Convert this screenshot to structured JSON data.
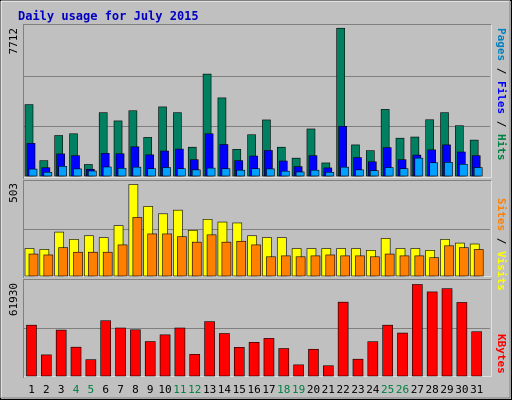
{
  "chart_data": [
    {
      "type": "bar",
      "title": "Daily usage for July 2015",
      "ymax_label": "7712",
      "right_label": [
        {
          "text": "Pages",
          "color": "#0080c0"
        },
        {
          "text": " / ",
          "color": "#000000"
        },
        {
          "text": "Files",
          "color": "#0000ff"
        },
        {
          "text": " / ",
          "color": "#000000"
        },
        {
          "text": "Hits",
          "color": "#008040"
        }
      ],
      "ylim": [
        0,
        7712
      ],
      "categories": [
        "1",
        "2",
        "3",
        "4",
        "5",
        "6",
        "7",
        "8",
        "9",
        "10",
        "11",
        "12",
        "13",
        "14",
        "15",
        "16",
        "17",
        "18",
        "19",
        "20",
        "21",
        "22",
        "23",
        "24",
        "25",
        "26",
        "27",
        "28",
        "29",
        "30",
        "31"
      ],
      "weekend_days": [
        "4",
        "5",
        "11",
        "12",
        "18",
        "19",
        "25",
        "26"
      ],
      "series": [
        {
          "name": "Hits",
          "color": "#008060",
          "values": [
            3720,
            800,
            2110,
            2200,
            600,
            3300,
            2870,
            3400,
            2010,
            3600,
            3300,
            1500,
            5310,
            4070,
            1390,
            2150,
            2920,
            1500,
            930,
            2450,
            680,
            7700,
            1620,
            1320,
            3470,
            1970,
            2030,
            2930,
            3300,
            2620,
            1870
          ]
        },
        {
          "name": "Files",
          "color": "#0000ff",
          "values": [
            1700,
            430,
            1150,
            1060,
            350,
            1180,
            1160,
            1520,
            1100,
            1300,
            1400,
            850,
            2200,
            1640,
            800,
            1040,
            1330,
            780,
            490,
            1060,
            420,
            2590,
            960,
            740,
            1480,
            850,
            1090,
            1360,
            1620,
            1250,
            1060
          ]
        },
        {
          "name": "Pages",
          "color": "#00a0ff",
          "values": [
            360,
            190,
            500,
            370,
            260,
            470,
            400,
            460,
            380,
            440,
            380,
            320,
            410,
            380,
            300,
            380,
            370,
            250,
            210,
            300,
            190,
            460,
            320,
            280,
            440,
            380,
            930,
            690,
            710,
            610,
            440
          ]
        }
      ]
    },
    {
      "type": "bar",
      "ymax_label": "503",
      "right_label": [
        {
          "text": "Sites",
          "color": "#ff8000"
        },
        {
          "text": " / ",
          "color": "#000000"
        },
        {
          "text": "Visits",
          "color": "#ffff00"
        }
      ],
      "ylim": [
        0,
        503
      ],
      "categories": [
        "1",
        "2",
        "3",
        "4",
        "5",
        "6",
        "7",
        "8",
        "9",
        "10",
        "11",
        "12",
        "13",
        "14",
        "15",
        "16",
        "17",
        "18",
        "19",
        "20",
        "21",
        "22",
        "23",
        "24",
        "25",
        "26",
        "27",
        "28",
        "29",
        "30",
        "31"
      ],
      "series": [
        {
          "name": "Visits",
          "color": "#ffff00",
          "values": [
            150,
            145,
            240,
            200,
            220,
            210,
            275,
            500,
            380,
            340,
            360,
            250,
            310,
            295,
            290,
            220,
            210,
            210,
            150,
            150,
            150,
            150,
            150,
            140,
            205,
            150,
            150,
            140,
            200,
            180,
            175
          ]
        },
        {
          "name": "Sites",
          "color": "#ff8000",
          "values": [
            120,
            115,
            155,
            130,
            130,
            130,
            170,
            320,
            230,
            230,
            215,
            185,
            225,
            185,
            190,
            170,
            105,
            110,
            105,
            110,
            115,
            110,
            110,
            105,
            120,
            110,
            110,
            100,
            165,
            155,
            145
          ]
        }
      ]
    },
    {
      "type": "bar",
      "ymax_label": "61930",
      "right_label": [
        {
          "text": "KBytes",
          "color": "#ff0000"
        }
      ],
      "ylim": [
        0,
        61930
      ],
      "categories": [
        "1",
        "2",
        "3",
        "4",
        "5",
        "6",
        "7",
        "8",
        "9",
        "10",
        "11",
        "12",
        "13",
        "14",
        "15",
        "16",
        "17",
        "18",
        "19",
        "20",
        "21",
        "22",
        "23",
        "24",
        "25",
        "26",
        "27",
        "28",
        "29",
        "30",
        "31"
      ],
      "series": [
        {
          "name": "KBytes",
          "color": "#ff0000",
          "values": [
            34200,
            14200,
            30900,
            19400,
            11000,
            37200,
            32300,
            31100,
            23200,
            27700,
            32300,
            14600,
            36600,
            28600,
            19300,
            22700,
            25300,
            18500,
            7500,
            18000,
            6900,
            49700,
            11300,
            23100,
            34200,
            28900,
            61600,
            56600,
            58800,
            49500,
            29800
          ]
        }
      ]
    }
  ]
}
